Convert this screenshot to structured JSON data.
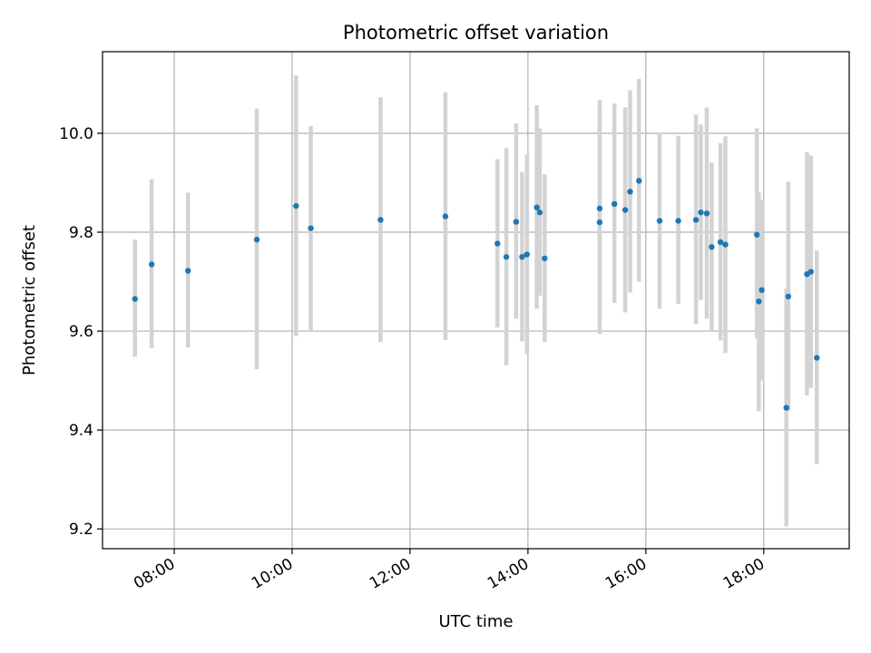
{
  "chart_data": {
    "type": "scatter",
    "title": "Photometric offset variation",
    "xlabel": "UTC time",
    "ylabel": "Photometric offset",
    "x_ticks": [
      "08:00",
      "10:00",
      "12:00",
      "14:00",
      "16:00",
      "18:00"
    ],
    "y_ticks": [
      "9.2",
      "9.4",
      "9.6",
      "9.8",
      "10.0"
    ],
    "xlim": [
      "06:47",
      "19:27"
    ],
    "ylim": [
      9.16,
      10.165
    ],
    "grid": true,
    "colors": {
      "points": "#1f77b4",
      "errorbars": "#d3d3d3",
      "grid": "#b0b0b0"
    },
    "points": [
      {
        "t": "07:20",
        "y": 9.665,
        "lo": 9.548,
        "hi": 9.785
      },
      {
        "t": "07:37",
        "y": 9.735,
        "lo": 9.565,
        "hi": 9.907
      },
      {
        "t": "08:14",
        "y": 9.722,
        "lo": 9.567,
        "hi": 9.88
      },
      {
        "t": "09:24",
        "y": 9.785,
        "lo": 9.523,
        "hi": 10.05
      },
      {
        "t": "10:04",
        "y": 9.853,
        "lo": 9.59,
        "hi": 10.117
      },
      {
        "t": "10:19",
        "y": 9.808,
        "lo": 9.602,
        "hi": 10.015
      },
      {
        "t": "11:30",
        "y": 9.825,
        "lo": 9.578,
        "hi": 10.073
      },
      {
        "t": "12:36",
        "y": 9.832,
        "lo": 9.582,
        "hi": 10.083
      },
      {
        "t": "13:29",
        "y": 9.777,
        "lo": 9.607,
        "hi": 9.948
      },
      {
        "t": "13:38",
        "y": 9.75,
        "lo": 9.531,
        "hi": 9.97
      },
      {
        "t": "13:48",
        "y": 9.821,
        "lo": 9.625,
        "hi": 10.02
      },
      {
        "t": "13:54",
        "y": 9.75,
        "lo": 9.579,
        "hi": 9.922
      },
      {
        "t": "13:59",
        "y": 9.755,
        "lo": 9.553,
        "hi": 9.957
      },
      {
        "t": "14:09",
        "y": 9.85,
        "lo": 9.645,
        "hi": 10.057
      },
      {
        "t": "14:12",
        "y": 9.84,
        "lo": 9.672,
        "hi": 10.01
      },
      {
        "t": "14:17",
        "y": 9.747,
        "lo": 9.578,
        "hi": 9.917
      },
      {
        "t": "15:13",
        "y": 9.848,
        "lo": 9.63,
        "hi": 10.068
      },
      {
        "t": "15:13",
        "y": 9.82,
        "lo": 9.594,
        "hi": 10.045
      },
      {
        "t": "15:28",
        "y": 9.857,
        "lo": 9.657,
        "hi": 10.06
      },
      {
        "t": "15:39",
        "y": 9.845,
        "lo": 9.638,
        "hi": 10.053
      },
      {
        "t": "15:44",
        "y": 9.882,
        "lo": 9.678,
        "hi": 10.087
      },
      {
        "t": "15:53",
        "y": 9.904,
        "lo": 9.7,
        "hi": 10.11
      },
      {
        "t": "16:14",
        "y": 9.823,
        "lo": 9.645,
        "hi": 10.002
      },
      {
        "t": "16:33",
        "y": 9.823,
        "lo": 9.655,
        "hi": 9.995
      },
      {
        "t": "16:51",
        "y": 9.825,
        "lo": 9.614,
        "hi": 10.038
      },
      {
        "t": "16:56",
        "y": 9.84,
        "lo": 9.663,
        "hi": 10.018
      },
      {
        "t": "17:02",
        "y": 9.838,
        "lo": 9.625,
        "hi": 10.052
      },
      {
        "t": "17:07",
        "y": 9.77,
        "lo": 9.6,
        "hi": 9.941
      },
      {
        "t": "17:16",
        "y": 9.78,
        "lo": 9.581,
        "hi": 9.98
      },
      {
        "t": "17:21",
        "y": 9.775,
        "lo": 9.556,
        "hi": 9.994
      },
      {
        "t": "17:53",
        "y": 9.795,
        "lo": 9.585,
        "hi": 10.01
      },
      {
        "t": "17:55",
        "y": 9.66,
        "lo": 9.438,
        "hi": 9.882
      },
      {
        "t": "17:58",
        "y": 9.683,
        "lo": 9.5,
        "hi": 9.866
      },
      {
        "t": "18:23",
        "y": 9.445,
        "lo": 9.205,
        "hi": 9.686
      },
      {
        "t": "18:25",
        "y": 9.67,
        "lo": 9.438,
        "hi": 9.902
      },
      {
        "t": "18:44",
        "y": 9.715,
        "lo": 9.47,
        "hi": 9.962
      },
      {
        "t": "18:48",
        "y": 9.72,
        "lo": 9.485,
        "hi": 9.955
      },
      {
        "t": "18:54",
        "y": 9.546,
        "lo": 9.331,
        "hi": 9.763
      }
    ]
  }
}
